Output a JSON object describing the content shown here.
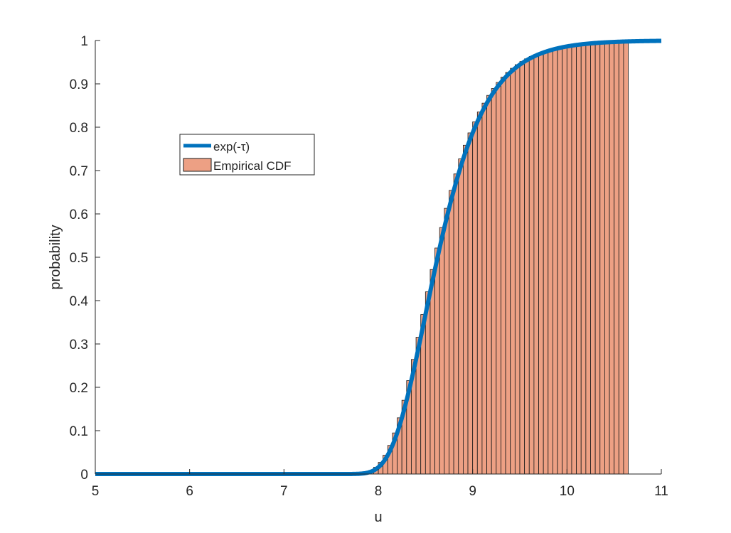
{
  "chart_data": {
    "type": "bar",
    "title": "",
    "xlabel": "u",
    "ylabel": "probability",
    "xlim": [
      5,
      11
    ],
    "ylim": [
      0,
      1
    ],
    "xticks": [
      "5",
      "6",
      "7",
      "8",
      "9",
      "10",
      "11"
    ],
    "yticks": [
      "0",
      "0.1",
      "0.2",
      "0.3",
      "0.4",
      "0.5",
      "0.6",
      "0.7",
      "0.8",
      "0.9",
      "1"
    ],
    "grid": false,
    "legend_position": "upper-left",
    "bar_bin_width": 0.05,
    "bar_range": [
      7.5,
      10.65
    ],
    "curve": {
      "name": "exp(-τ)",
      "color": "#0072BD",
      "gumbel_location": 8.5,
      "gumbel_scale": 0.35
    },
    "bars": {
      "name": "Empirical CDF",
      "color": "#EDA084",
      "edge_color": "#1a1a1a"
    }
  }
}
